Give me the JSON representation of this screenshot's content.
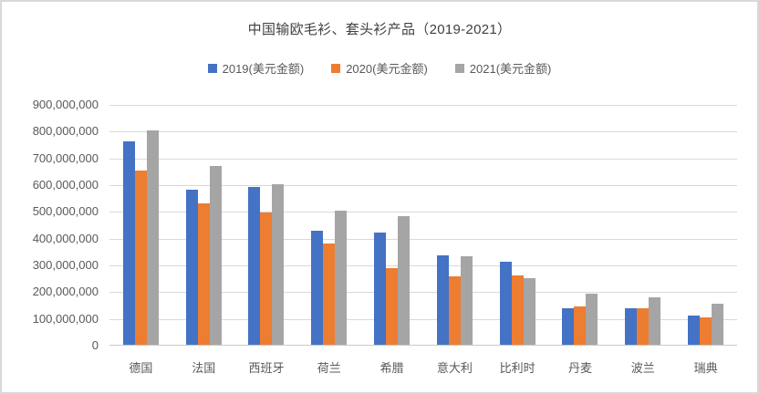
{
  "chart_data": {
    "type": "bar",
    "title": "中国输欧毛衫、套头衫产品（2019-2021）",
    "categories": [
      "德国",
      "法国",
      "西班牙",
      "荷兰",
      "希腊",
      "意大利",
      "比利时",
      "丹麦",
      "波兰",
      "瑞典"
    ],
    "series": [
      {
        "name": "2019(美元金额)",
        "color": "#4472C4",
        "values": [
          760000000,
          580000000,
          590000000,
          428000000,
          420000000,
          335000000,
          310000000,
          138000000,
          137000000,
          110000000
        ]
      },
      {
        "name": "2020(美元金额)",
        "color": "#ED7D31",
        "values": [
          650000000,
          528000000,
          495000000,
          380000000,
          285000000,
          255000000,
          260000000,
          144000000,
          135000000,
          102000000
        ]
      },
      {
        "name": "2021(美元金额)",
        "color": "#A5A5A5",
        "values": [
          800000000,
          668000000,
          600000000,
          502000000,
          482000000,
          330000000,
          248000000,
          192000000,
          178000000,
          153000000
        ]
      }
    ],
    "ylim": [
      0,
      900000000
    ],
    "y_tick_step": 100000000,
    "y_tick_labels": [
      "900,000,000",
      "800,000,000",
      "700,000,000",
      "600,000,000",
      "500,000,000",
      "400,000,000",
      "300,000,000",
      "200,000,000",
      "100,000,000",
      "0"
    ],
    "grid": true,
    "legend_position": "top",
    "styles": {
      "title_color": "#404040",
      "axis_text_color": "#595959",
      "gridline_color": "#d9d9d9",
      "axis_line_color": "#c9c9c9",
      "frame_border_color": "#d9d9d9",
      "background": "#ffffff"
    }
  }
}
